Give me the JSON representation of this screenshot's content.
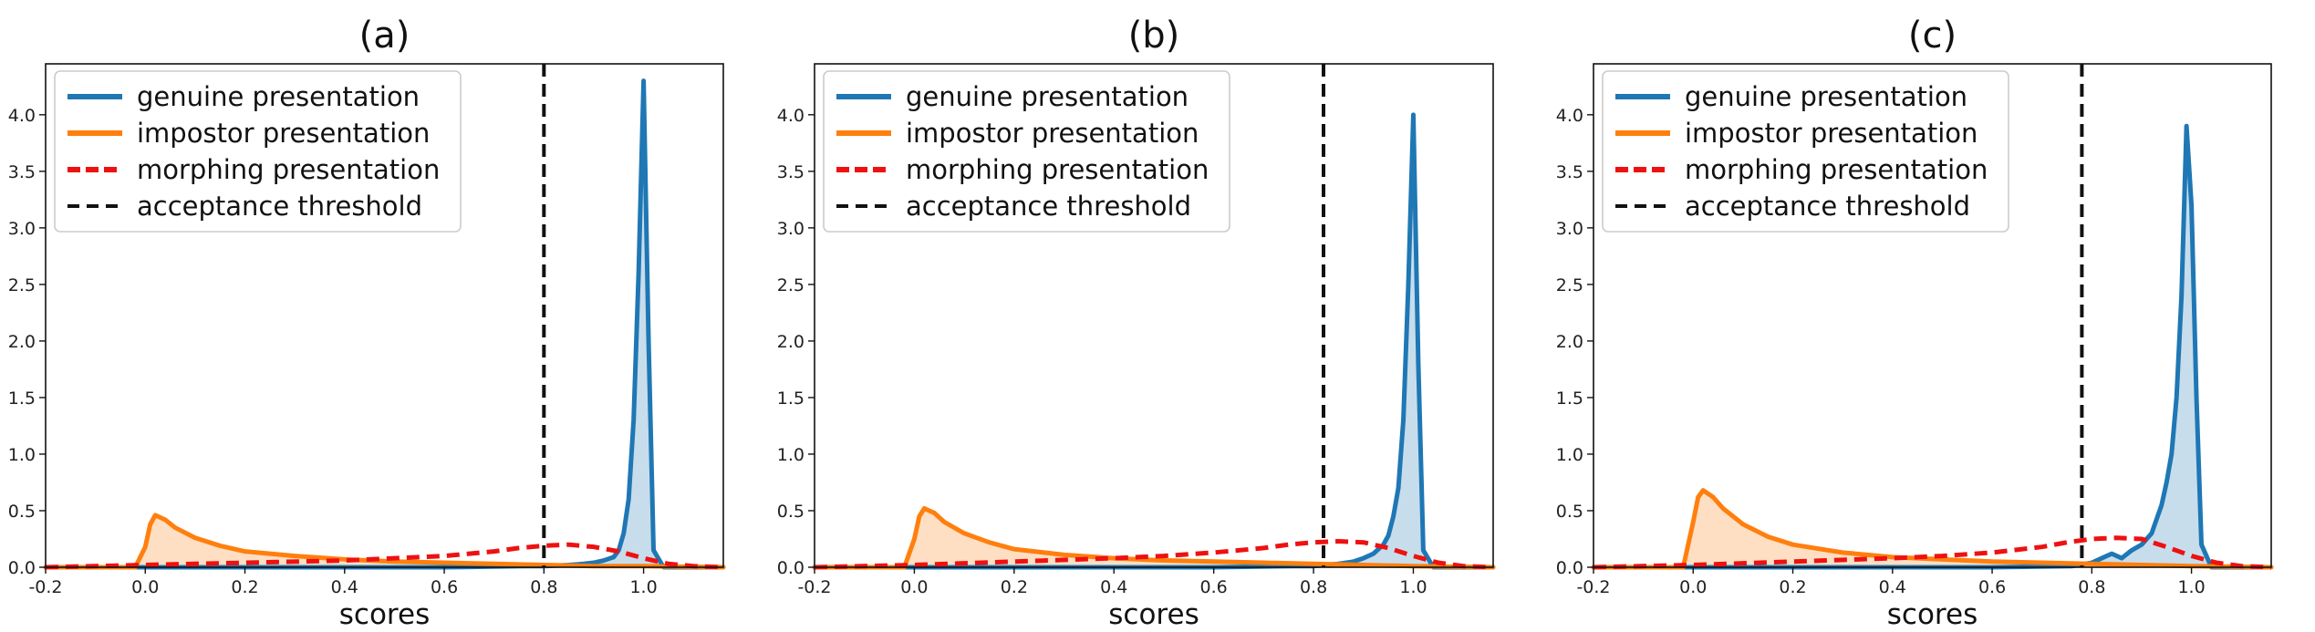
{
  "chart_data": [
    {
      "type": "area",
      "title": "(a)",
      "xlabel": "scores",
      "ylabel": "",
      "xlim": [
        -0.2,
        1.16
      ],
      "ylim": [
        0,
        4.45
      ],
      "xticks": [
        "-0.2",
        "0.0",
        "0.2",
        "0.4",
        "0.6",
        "0.8",
        "1.0"
      ],
      "yticks": [
        "0.0",
        "0.5",
        "1.0",
        "1.5",
        "2.0",
        "2.5",
        "3.0",
        "3.5",
        "4.0"
      ],
      "legend_position": "top-left",
      "threshold": 0.8,
      "series": [
        {
          "name": "genuine presentation",
          "color": "#1f77b4",
          "style": "solid",
          "filled": true,
          "x": [
            -0.2,
            0.6,
            0.76,
            0.8,
            0.85,
            0.88,
            0.9,
            0.92,
            0.94,
            0.95,
            0.96,
            0.97,
            0.98,
            0.99,
            1.0,
            1.01,
            1.02,
            1.04,
            1.16
          ],
          "y": [
            0.0,
            0.0,
            0.01,
            0.01,
            0.02,
            0.03,
            0.04,
            0.06,
            0.09,
            0.15,
            0.3,
            0.6,
            1.3,
            2.6,
            4.3,
            2.0,
            0.15,
            0.0,
            0.0
          ]
        },
        {
          "name": "impostor presentation",
          "color": "#ff7f0e",
          "style": "solid",
          "filled": true,
          "x": [
            -0.2,
            -0.02,
            0.0,
            0.01,
            0.02,
            0.04,
            0.06,
            0.1,
            0.15,
            0.2,
            0.3,
            0.4,
            0.5,
            0.6,
            0.7,
            0.8,
            0.9,
            1.0,
            1.16
          ],
          "y": [
            0.0,
            0.0,
            0.18,
            0.38,
            0.46,
            0.42,
            0.35,
            0.26,
            0.19,
            0.14,
            0.1,
            0.07,
            0.05,
            0.04,
            0.03,
            0.02,
            0.01,
            0.01,
            0.0
          ]
        },
        {
          "name": "morphing presentation",
          "color": "#ee1111",
          "style": "dashed",
          "filled": false,
          "x": [
            -0.2,
            0.0,
            0.2,
            0.4,
            0.5,
            0.6,
            0.7,
            0.75,
            0.8,
            0.85,
            0.9,
            0.95,
            1.0,
            1.05,
            1.1,
            1.16
          ],
          "y": [
            0.0,
            0.02,
            0.04,
            0.06,
            0.08,
            0.1,
            0.14,
            0.17,
            0.19,
            0.2,
            0.18,
            0.14,
            0.08,
            0.03,
            0.01,
            0.0
          ]
        },
        {
          "name": "acceptance threshold",
          "color": "#111111",
          "style": "dashed",
          "filled": false,
          "x_value": 0.8
        }
      ]
    },
    {
      "type": "area",
      "title": "(b)",
      "xlabel": "scores",
      "ylabel": "",
      "xlim": [
        -0.2,
        1.16
      ],
      "ylim": [
        0,
        4.45
      ],
      "xticks": [
        "-0.2",
        "0.0",
        "0.2",
        "0.4",
        "0.6",
        "0.8",
        "1.0"
      ],
      "yticks": [
        "0.0",
        "0.5",
        "1.0",
        "1.5",
        "2.0",
        "2.5",
        "3.0",
        "3.5",
        "4.0"
      ],
      "legend_position": "top-left",
      "threshold": 0.82,
      "series": [
        {
          "name": "genuine presentation",
          "color": "#1f77b4",
          "style": "solid",
          "filled": true,
          "x": [
            -0.2,
            0.6,
            0.76,
            0.8,
            0.85,
            0.88,
            0.9,
            0.92,
            0.94,
            0.95,
            0.96,
            0.97,
            0.98,
            0.99,
            1.0,
            1.01,
            1.02,
            1.04,
            1.16
          ],
          "y": [
            0.0,
            0.0,
            0.01,
            0.01,
            0.03,
            0.05,
            0.08,
            0.12,
            0.2,
            0.28,
            0.45,
            0.7,
            1.3,
            2.5,
            4.0,
            1.8,
            0.15,
            0.0,
            0.0
          ]
        },
        {
          "name": "impostor presentation",
          "color": "#ff7f0e",
          "style": "solid",
          "filled": true,
          "x": [
            -0.2,
            -0.02,
            0.0,
            0.01,
            0.02,
            0.04,
            0.06,
            0.1,
            0.15,
            0.2,
            0.3,
            0.4,
            0.5,
            0.6,
            0.7,
            0.8,
            0.9,
            1.0,
            1.16
          ],
          "y": [
            0.0,
            0.0,
            0.25,
            0.45,
            0.52,
            0.48,
            0.4,
            0.3,
            0.22,
            0.16,
            0.11,
            0.08,
            0.06,
            0.05,
            0.04,
            0.03,
            0.02,
            0.01,
            0.0
          ]
        },
        {
          "name": "morphing presentation",
          "color": "#ee1111",
          "style": "dashed",
          "filled": false,
          "x": [
            -0.2,
            0.0,
            0.2,
            0.4,
            0.5,
            0.6,
            0.7,
            0.75,
            0.8,
            0.85,
            0.9,
            0.95,
            1.0,
            1.05,
            1.1,
            1.16
          ],
          "y": [
            0.0,
            0.02,
            0.05,
            0.08,
            0.1,
            0.13,
            0.17,
            0.2,
            0.22,
            0.23,
            0.22,
            0.17,
            0.1,
            0.04,
            0.01,
            0.0
          ]
        },
        {
          "name": "acceptance threshold",
          "color": "#111111",
          "style": "dashed",
          "filled": false,
          "x_value": 0.82
        }
      ]
    },
    {
      "type": "area",
      "title": "(c)",
      "xlabel": "scores",
      "ylabel": "",
      "xlim": [
        -0.2,
        1.16
      ],
      "ylim": [
        0,
        4.45
      ],
      "xticks": [
        "-0.2",
        "0.0",
        "0.2",
        "0.4",
        "0.6",
        "0.8",
        "1.0"
      ],
      "yticks": [
        "0.0",
        "0.5",
        "1.0",
        "1.5",
        "2.0",
        "2.5",
        "3.0",
        "3.5",
        "4.0"
      ],
      "legend_position": "top-left",
      "threshold": 0.78,
      "series": [
        {
          "name": "genuine presentation",
          "color": "#1f77b4",
          "style": "solid",
          "filled": true,
          "x": [
            -0.2,
            0.6,
            0.76,
            0.8,
            0.82,
            0.84,
            0.86,
            0.88,
            0.9,
            0.92,
            0.94,
            0.95,
            0.96,
            0.97,
            0.98,
            0.99,
            1.0,
            1.01,
            1.02,
            1.04,
            1.16
          ],
          "y": [
            0.0,
            0.0,
            0.01,
            0.04,
            0.08,
            0.12,
            0.08,
            0.15,
            0.2,
            0.3,
            0.55,
            0.75,
            1.0,
            1.5,
            2.4,
            3.9,
            3.2,
            1.5,
            0.2,
            0.0,
            0.0
          ]
        },
        {
          "name": "impostor presentation",
          "color": "#ff7f0e",
          "style": "solid",
          "filled": true,
          "x": [
            -0.2,
            -0.02,
            0.0,
            0.01,
            0.02,
            0.04,
            0.06,
            0.1,
            0.15,
            0.2,
            0.3,
            0.4,
            0.5,
            0.6,
            0.7,
            0.8,
            0.9,
            1.0,
            1.16
          ],
          "y": [
            0.0,
            0.0,
            0.4,
            0.62,
            0.68,
            0.62,
            0.52,
            0.38,
            0.27,
            0.2,
            0.13,
            0.09,
            0.07,
            0.05,
            0.04,
            0.03,
            0.02,
            0.01,
            0.0
          ]
        },
        {
          "name": "morphing presentation",
          "color": "#ee1111",
          "style": "dashed",
          "filled": false,
          "x": [
            -0.2,
            0.0,
            0.2,
            0.4,
            0.5,
            0.6,
            0.7,
            0.75,
            0.8,
            0.85,
            0.9,
            0.95,
            1.0,
            1.05,
            1.1,
            1.16
          ],
          "y": [
            0.0,
            0.02,
            0.05,
            0.08,
            0.1,
            0.13,
            0.18,
            0.22,
            0.25,
            0.26,
            0.25,
            0.18,
            0.1,
            0.04,
            0.01,
            0.0
          ]
        },
        {
          "name": "acceptance threshold",
          "color": "#111111",
          "style": "dashed",
          "filled": false,
          "x_value": 0.78
        }
      ]
    }
  ]
}
